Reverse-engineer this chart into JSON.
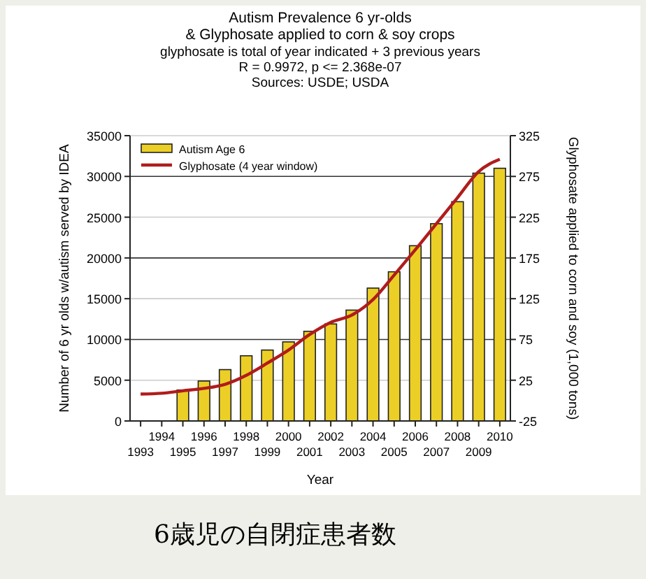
{
  "chart_data": {
    "type": "bar",
    "title": "Autism Prevalence 6 yr-olds\n& Glyphosate applied to corn & soy crops",
    "subtitle": "glyphosate is total of year indicated + 3 previous years\nR = 0.9972, p <= 2.368e-07\nSources: USDE; USDA",
    "xlabel": "Year",
    "ylabel": "Number of 6 yr olds w/autism served by IDEA",
    "y2label": "Glyphosate applied to corn and soy (1,000 tons)",
    "annotations": [
      "6歳児の自閉症患者数"
    ],
    "xlim": [
      1992.5,
      2010.5
    ],
    "xticks": [
      1994,
      1996,
      1998,
      2000,
      2002,
      2004,
      2006,
      2008,
      2010
    ],
    "x2lim": [
      1992.5,
      2010.5
    ],
    "x2ticks": [
      1993,
      1995,
      1997,
      1999,
      2001,
      2003,
      2005,
      2007,
      2009
    ],
    "ylim": [
      0,
      35000
    ],
    "yticks": [
      0,
      5000,
      10000,
      15000,
      20000,
      25000,
      30000,
      35000
    ],
    "y2lim": [
      -25,
      325
    ],
    "y2ticks": [
      -25,
      25,
      75,
      125,
      175,
      225,
      275,
      325
    ],
    "grid": "y",
    "legend": "top left",
    "series": [
      {
        "name": "Autism Age 6",
        "color": "#eccf26",
        "x": [
          1995,
          1996,
          1997,
          1998,
          1999,
          2000,
          2001,
          2002,
          2003,
          2004,
          2005,
          2006,
          2007,
          2008,
          2009,
          2010
        ],
        "values": [
          3800,
          4900,
          6300,
          8000,
          8700,
          9700,
          11000,
          11900,
          13600,
          16300,
          18300,
          21500,
          24200,
          26900,
          30400,
          31000
        ]
      },
      {
        "name": "Glyphosate (4 year window)",
        "type": "line",
        "axis": "y2",
        "color": "#b01c1c",
        "line_style": "solid",
        "x": [
          1993,
          1994,
          1995,
          1996,
          1997,
          1998,
          1999,
          2000,
          2001,
          2002,
          2003,
          2004,
          2005,
          2006,
          2007,
          2008,
          2009,
          2010
        ],
        "values": [
          8,
          9,
          12,
          15,
          20,
          31,
          46,
          62,
          81,
          96,
          105,
          124,
          154,
          185,
          217,
          249,
          281,
          296
        ]
      }
    ]
  }
}
